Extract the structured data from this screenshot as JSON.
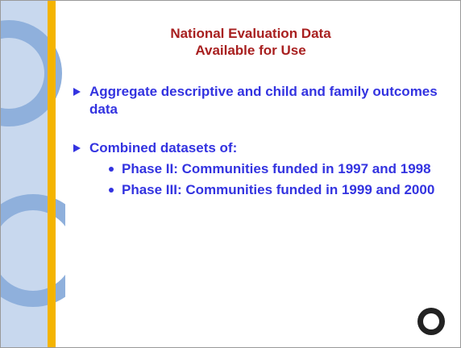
{
  "title": [
    "National Evaluation Data",
    "Available for Use"
  ],
  "bullets": [
    {
      "text": "Aggregate descriptive and child and family outcomes data",
      "sub": []
    },
    {
      "text": "Combined datasets of:",
      "sub": [
        "Phase II: Communities funded in 1997 and 1998",
        "Phase III: Communities funded in 1999 and 2000"
      ]
    }
  ]
}
